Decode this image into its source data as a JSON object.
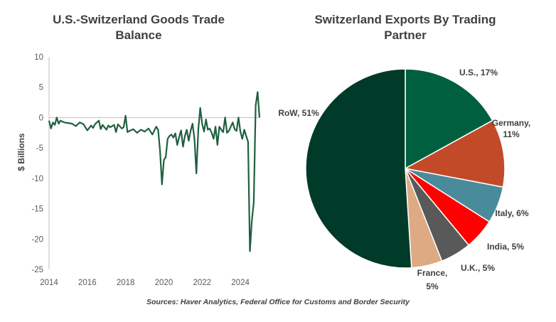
{
  "chart_data": [
    {
      "type": "line",
      "title": "U.S.-Switzerland Goods Trade Balance",
      "ylabel": "$ Billions",
      "xlabel": "",
      "ylim": [
        -25,
        10
      ],
      "yticks": [
        10,
        5,
        0,
        -5,
        -10,
        -15,
        -20,
        -25
      ],
      "xlim": [
        2014,
        2025
      ],
      "xticks": [
        2014,
        2016,
        2018,
        2020,
        2022,
        2024
      ],
      "grid": false,
      "series": [
        {
          "color": "#1f5f3f",
          "x": [
            2014.0,
            2014.1,
            2014.2,
            2014.3,
            2014.4,
            2014.5,
            2014.6,
            2014.8,
            2015.0,
            2015.2,
            2015.4,
            2015.6,
            2015.8,
            2016.0,
            2016.2,
            2016.3,
            2016.4,
            2016.6,
            2016.7,
            2016.8,
            2017.0,
            2017.1,
            2017.2,
            2017.4,
            2017.5,
            2017.6,
            2017.8,
            2017.9,
            2018.0,
            2018.1,
            2018.2,
            2018.4,
            2018.6,
            2018.8,
            2019.0,
            2019.2,
            2019.4,
            2019.6,
            2019.7,
            2019.8,
            2019.9,
            2020.0,
            2020.1,
            2020.2,
            2020.3,
            2020.4,
            2020.5,
            2020.6,
            2020.7,
            2020.8,
            2020.9,
            2021.0,
            2021.1,
            2021.2,
            2021.3,
            2021.4,
            2021.5,
            2021.6,
            2021.7,
            2021.8,
            2021.9,
            2022.0,
            2022.1,
            2022.2,
            2022.3,
            2022.4,
            2022.5,
            2022.6,
            2022.7,
            2022.8,
            2022.9,
            2023.0,
            2023.1,
            2023.2,
            2023.3,
            2023.4,
            2023.5,
            2023.6,
            2023.7,
            2023.8,
            2023.9,
            2024.0,
            2024.1,
            2024.2,
            2024.3,
            2024.4,
            2024.5,
            2024.6,
            2024.7,
            2024.8,
            2024.9,
            2025.0
          ],
          "y": [
            -0.5,
            -1.8,
            -0.8,
            -1.2,
            0.0,
            -1.0,
            -0.5,
            -0.8,
            -0.9,
            -1.0,
            -1.4,
            -0.8,
            -1.1,
            -2.1,
            -1.3,
            -1.7,
            -1.1,
            -0.5,
            -1.9,
            -1.2,
            -2.0,
            -1.3,
            -1.6,
            -1.2,
            -2.4,
            -1.1,
            -1.8,
            -1.6,
            0.3,
            -2.4,
            -2.2,
            -1.9,
            -2.5,
            -2.0,
            -2.3,
            -1.8,
            -2.8,
            -1.5,
            -2.0,
            -5.5,
            -11.0,
            -7.0,
            -6.5,
            -3.5,
            -3.0,
            -2.8,
            -3.3,
            -2.6,
            -4.5,
            -3.2,
            -2.1,
            -4.8,
            -3.0,
            -2.0,
            -3.8,
            -2.2,
            -1.0,
            -3.5,
            -9.2,
            -2.0,
            1.6,
            -1.0,
            -2.3,
            -0.3,
            -2.0,
            -1.8,
            -2.5,
            -3.5,
            -1.5,
            -4.5,
            -1.5,
            -2.0,
            -2.4,
            0.0,
            -2.5,
            -2.2,
            -1.5,
            -0.8,
            -1.9,
            -2.2,
            0.0,
            -2.3,
            -3.5,
            -2.0,
            -3.0,
            -4.0,
            -22.0,
            -17.0,
            -14.0,
            2.0,
            4.2,
            0.0
          ]
        }
      ]
    },
    {
      "type": "pie",
      "title": "Switzerland Exports By Trading Partner",
      "slices": [
        {
          "label": "U.S., 17%",
          "value": 17,
          "color": "#005f3f"
        },
        {
          "label": "Germany, 11%",
          "value": 11,
          "color": "#c24a28"
        },
        {
          "label": "Italy, 6%",
          "value": 6,
          "color": "#4a8b9b"
        },
        {
          "label": "India, 5%",
          "value": 5,
          "color": "#ff0000"
        },
        {
          "label": "U.K., 5%",
          "value": 5,
          "color": "#595959"
        },
        {
          "label": "France, 5%",
          "value": 5,
          "color": "#deaa84"
        },
        {
          "label": "RoW, 51%",
          "value": 51,
          "color": "#003a28"
        }
      ],
      "slice_labels": [
        "U.S., 17%",
        "Germany,",
        "11%",
        "Italy, 6%",
        "India, 5%",
        "U.K., 5%",
        "France,",
        "5%",
        "RoW, 51%"
      ]
    }
  ],
  "source": "Sources: Haver Analytics, Federal Office for Customs and Border Security"
}
